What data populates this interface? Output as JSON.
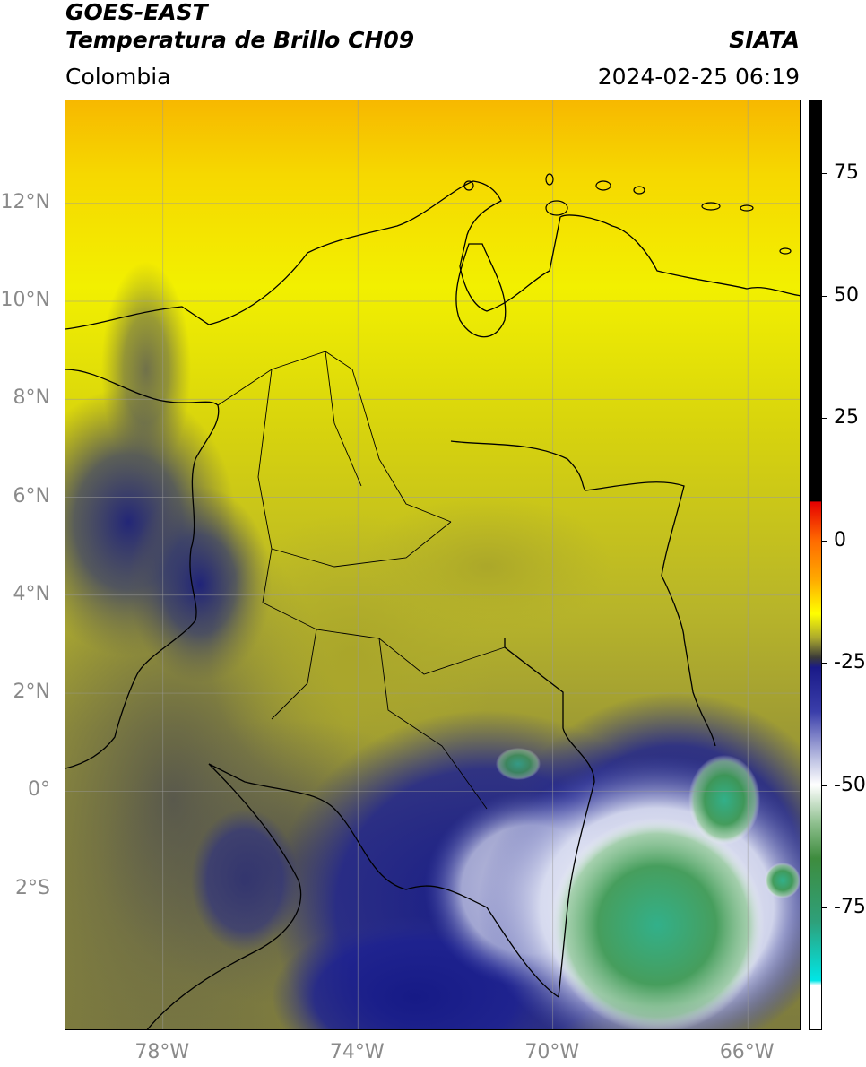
{
  "header": {
    "satellite": "GOES-EAST",
    "product": "Temperatura de Brillo CH09",
    "agency": "SIATA",
    "region": "Colombia",
    "timestamp": "2024-02-25 06:19"
  },
  "map": {
    "lon_range": [
      -80,
      -64.9
    ],
    "lat_range": [
      -4.9,
      14.1
    ],
    "lat_ticks": [
      {
        "value": 12,
        "label": "12°N"
      },
      {
        "value": 10,
        "label": "10°N"
      },
      {
        "value": 8,
        "label": "8°N"
      },
      {
        "value": 6,
        "label": "6°N"
      },
      {
        "value": 4,
        "label": "4°N"
      },
      {
        "value": 2,
        "label": "2°N"
      },
      {
        "value": 0,
        "label": "0°"
      },
      {
        "value": -2,
        "label": "2°S"
      }
    ],
    "lon_ticks": [
      {
        "value": -78,
        "label": "78°W"
      },
      {
        "value": -74,
        "label": "74°W"
      },
      {
        "value": -70,
        "label": "70°W"
      },
      {
        "value": -66,
        "label": "66°W"
      }
    ],
    "gridlines": true,
    "colors": {
      "warm": "#f5c400",
      "yellow": "#f2f000",
      "olive": "#a8a630",
      "gray": "#5c5c50",
      "navy": "#1a1e8c",
      "white": "#f4f4f4",
      "green": "#3e9a55",
      "teal": "#3bb79a"
    }
  },
  "colorbar": {
    "range": [
      -100,
      90
    ],
    "ticks": [
      {
        "value": 75,
        "label": "75"
      },
      {
        "value": 50,
        "label": "50"
      },
      {
        "value": 25,
        "label": "25"
      },
      {
        "value": 0,
        "label": "0"
      },
      {
        "value": -25,
        "label": "-25"
      },
      {
        "value": -50,
        "label": "-50"
      },
      {
        "value": -75,
        "label": "-75"
      }
    ]
  }
}
